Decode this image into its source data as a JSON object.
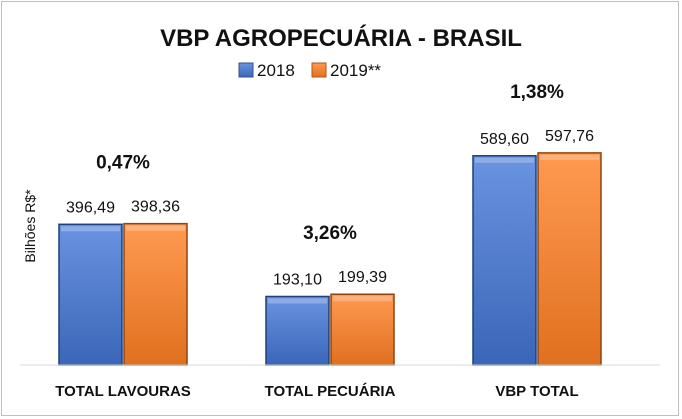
{
  "chart_data": {
    "type": "bar",
    "title": "VBP AGROPECUÁRIA - BRASIL",
    "ylabel": "Bilhões R$*",
    "xlabel": "",
    "categories": [
      "TOTAL LAVOURAS",
      "TOTAL PECUÁRIA",
      "VBP TOTAL"
    ],
    "series": [
      {
        "name": "2018",
        "values": [
          396.49,
          193.1,
          589.6
        ],
        "labels": [
          "396,49",
          "193,10",
          "589,60"
        ],
        "color": "#4472C4"
      },
      {
        "name": "2019**",
        "values": [
          398.36,
          199.39,
          597.76
        ],
        "labels": [
          "398,36",
          "199,39",
          "597,76"
        ],
        "color": "#ED7D31"
      }
    ],
    "growth_labels": [
      "0,47%",
      "3,26%",
      "1,38%"
    ],
    "ylim": [
      0,
      620
    ],
    "grid": false,
    "legend": "top"
  }
}
